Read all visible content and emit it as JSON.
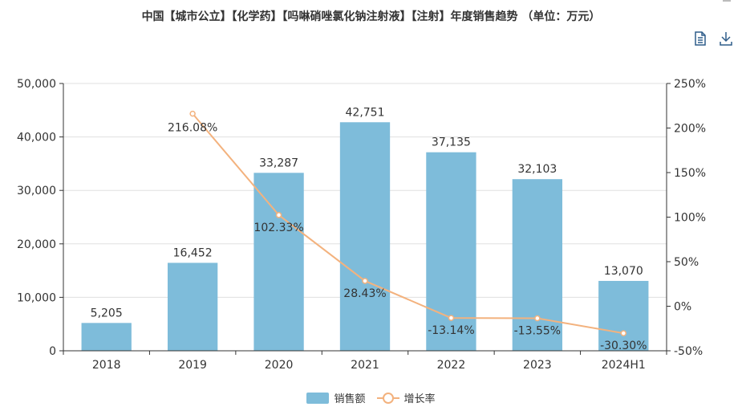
{
  "header": {
    "title": "中国【城市公立】【化学药】【吗啉硝唑氯化钠注射液】【注射】年度销售趋势 （单位：万元）"
  },
  "toolbar": {
    "data_view_icon": "document-icon",
    "download_icon": "download-icon"
  },
  "colors": {
    "bar": "#7ebcda",
    "line": "#f3b27e",
    "grid": "#e0e0e0",
    "axis": "#333333"
  },
  "chart_data": {
    "type": "bar",
    "categories": [
      "2018",
      "2019",
      "2020",
      "2021",
      "2022",
      "2023",
      "2024H1"
    ],
    "series": [
      {
        "name": "销售额",
        "type": "bar",
        "axis": "left",
        "values": [
          5205,
          16452,
          33287,
          42751,
          37135,
          32103,
          13070
        ],
        "labels": [
          "5,205",
          "16,452",
          "33,287",
          "42,751",
          "37,135",
          "32,103",
          "13,070"
        ]
      },
      {
        "name": "增长率",
        "type": "line",
        "axis": "right",
        "values": [
          null,
          216.08,
          102.33,
          28.43,
          -13.14,
          -13.55,
          -30.3
        ],
        "labels": [
          "",
          "216.08%",
          "102.33%",
          "28.43%",
          "-13.14%",
          "-13.55%",
          "-30.30%"
        ]
      }
    ],
    "y_left": {
      "ylim": [
        0,
        50000
      ],
      "ticks": [
        "0",
        "10,000",
        "20,000",
        "30,000",
        "40,000",
        "50,000"
      ]
    },
    "y_right": {
      "ylim": [
        -50,
        250
      ],
      "ticks": [
        "-50%",
        "0%",
        "50%",
        "100%",
        "150%",
        "200%",
        "250%"
      ]
    },
    "grid": true,
    "legend_position": "bottom-center"
  },
  "legend": {
    "bar_label": "销售额",
    "line_label": "增长率"
  }
}
